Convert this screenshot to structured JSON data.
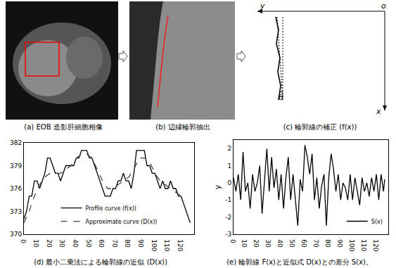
{
  "panels": [
    {
      "caption": "(a) EOB 造影肝細胞相像"
    },
    {
      "caption": "(b) 辺縁輪郭抽出"
    },
    {
      "caption": "(c) 輪郭線の補正 (f(x))",
      "labels": {
        "y": "y",
        "origin": "o",
        "x": "x",
        "angle": "θ"
      }
    }
  ],
  "chart_data": [
    {
      "type": "line",
      "caption": "(d) 最小二乗法による輪郭線の近似 (D(x))",
      "xlim": [
        0,
        130
      ],
      "xticks": [
        0,
        10,
        20,
        30,
        40,
        50,
        60,
        70,
        80,
        90,
        100,
        110,
        120
      ],
      "ylim": [
        370,
        382
      ],
      "yticks": [
        370,
        373,
        376,
        379,
        382
      ],
      "legend": "bottom",
      "grid": false,
      "series": [
        {
          "name": "Profile curve (f(x))",
          "color": "#000000",
          "line_style": "solid",
          "x": [
            0,
            2,
            4,
            6,
            8,
            10,
            12,
            14,
            16,
            18,
            20,
            22,
            24,
            26,
            28,
            30,
            32,
            34,
            36,
            38,
            40,
            42,
            44,
            46,
            48,
            50,
            52,
            54,
            56,
            58,
            60,
            62,
            64,
            66,
            68,
            70,
            72,
            74,
            76,
            78,
            80,
            82,
            84,
            86,
            88,
            90,
            92,
            94,
            96,
            98,
            100,
            102,
            104,
            106,
            108,
            110,
            112,
            114,
            116,
            118,
            120,
            122,
            124,
            126,
            127
          ],
          "values": [
            372,
            373,
            375,
            375,
            377,
            377,
            376,
            377,
            378,
            380,
            380,
            379,
            378,
            378,
            377,
            378,
            379,
            379,
            379,
            379,
            380,
            380,
            381,
            381,
            381,
            380,
            380,
            379,
            378,
            377,
            376,
            375,
            375,
            375,
            376,
            376,
            377,
            377,
            378,
            377,
            377,
            376,
            378,
            381,
            381,
            381,
            381,
            379,
            379,
            378,
            378,
            377,
            376,
            377,
            376,
            376,
            377,
            376,
            376,
            375,
            375,
            374,
            373,
            372,
            371.5
          ]
        },
        {
          "name": "Approximate curve (D(x))",
          "color": "#444444",
          "line_style": "dash",
          "x": [
            0,
            4,
            8,
            12,
            16,
            20,
            24,
            28,
            32,
            36,
            40,
            44,
            48,
            52,
            56,
            60,
            64,
            68,
            72,
            76,
            80,
            84,
            88,
            92,
            96,
            100,
            104,
            108,
            112,
            116,
            120,
            124,
            127
          ],
          "values": [
            371.5,
            373,
            375,
            376.5,
            377.5,
            378,
            378,
            378,
            378.5,
            379,
            380,
            380.5,
            380.5,
            380,
            378.5,
            377,
            376,
            376,
            376.5,
            377,
            377.5,
            378.5,
            380,
            380,
            379.5,
            378,
            377,
            376.5,
            376,
            375.5,
            375,
            373,
            371.5
          ]
        }
      ]
    },
    {
      "type": "line",
      "caption": "(e) 輪郭線 F(x)と近似式 D(x)との差分 S(x)。",
      "y_label": "y",
      "xlim": [
        0,
        130
      ],
      "xticks": [
        0,
        10,
        20,
        30,
        40,
        50,
        60,
        70,
        80,
        90,
        100,
        110,
        120
      ],
      "ylim": [
        -3,
        2.5
      ],
      "yticks": [
        -3,
        -2,
        -1,
        0,
        1,
        2
      ],
      "legend": "bottom right",
      "grid": false,
      "series": [
        {
          "name": "S(x)",
          "color": "#000000",
          "line_style": "solid",
          "x": [
            0,
            2,
            4,
            6,
            8,
            10,
            12,
            14,
            16,
            18,
            20,
            22,
            24,
            26,
            28,
            30,
            32,
            34,
            36,
            38,
            40,
            42,
            44,
            46,
            48,
            50,
            52,
            54,
            56,
            58,
            60,
            62,
            64,
            66,
            68,
            70,
            72,
            74,
            76,
            78,
            80,
            82,
            84,
            86,
            88,
            90,
            92,
            94,
            96,
            98,
            100,
            102,
            104,
            106,
            108,
            110,
            112,
            114,
            116,
            118,
            120,
            122,
            124,
            126,
            127
          ],
          "values": [
            0.3,
            -0.5,
            0.5,
            -1,
            1.8,
            -0.5,
            0,
            -1.5,
            0.5,
            -0.5,
            0,
            1,
            -1.8,
            0.2,
            2,
            -0.5,
            1.5,
            -0.3,
            0.8,
            -1,
            0.5,
            -1.5,
            0.3,
            1.5,
            -1,
            0.5,
            -1,
            -2.5,
            0.2,
            -0.5,
            2.2,
            1.5,
            0.5,
            1.7,
            -1,
            0.3,
            -1.5,
            -0.2,
            0.5,
            -2.5,
            0.3,
            1.7,
            0.8,
            -0.5,
            0.5,
            -1,
            0,
            -0.3,
            -1,
            0.5,
            -1,
            0.3,
            -0.5,
            -1.3,
            0.3,
            -0.5,
            0,
            -0.8,
            0.3,
            -0.5,
            0.5,
            -1,
            0.5,
            -0.5,
            0.2
          ]
        }
      ]
    }
  ]
}
